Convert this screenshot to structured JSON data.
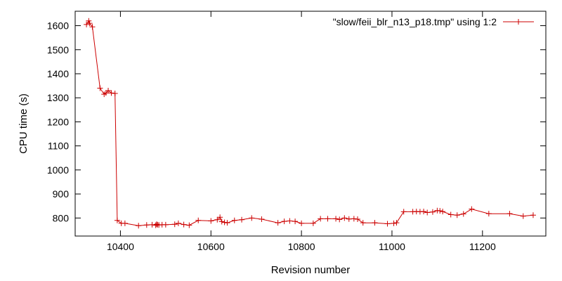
{
  "chart_data": {
    "type": "line",
    "title": "",
    "xlabel": "Revision number",
    "ylabel": "CPU time (s)",
    "xlim": [
      10300,
      11340
    ],
    "ylim": [
      725,
      1660
    ],
    "x_ticks": [
      10400,
      10600,
      10800,
      11000,
      11200
    ],
    "y_ticks": [
      800,
      900,
      1000,
      1100,
      1200,
      1300,
      1400,
      1500,
      1600
    ],
    "grid": false,
    "legend_position": "top-right",
    "colors": {
      "series": "#cc0000",
      "axes": "#000000"
    },
    "series": [
      {
        "name": "\"slow/feii_blr_n13_p18.tmp\" using 1:2",
        "marker": "plus",
        "x": [
          10325,
          10330,
          10332,
          10338,
          10355,
          10364,
          10368,
          10373,
          10380,
          10388,
          10393,
          10402,
          10410,
          10440,
          10458,
          10470,
          10478,
          10480,
          10482,
          10485,
          10492,
          10500,
          10520,
          10528,
          10540,
          10552,
          10572,
          10600,
          10614,
          10620,
          10624,
          10630,
          10636,
          10652,
          10668,
          10690,
          10712,
          10748,
          10762,
          10774,
          10786,
          10800,
          10826,
          10842,
          10858,
          10876,
          10884,
          10895,
          10905,
          10916,
          10924,
          10936,
          10962,
          10990,
          11004,
          11010,
          11026,
          11046,
          11054,
          11062,
          11070,
          11078,
          11090,
          11100,
          11106,
          11112,
          11130,
          11144,
          11158,
          11176,
          11214,
          11260,
          11290,
          11312
        ],
        "y": [
          1605,
          1620,
          1610,
          1595,
          1340,
          1315,
          1320,
          1330,
          1320,
          1318,
          790,
          778,
          778,
          768,
          771,
          772,
          770,
          774,
          772,
          771,
          772,
          772,
          774,
          778,
          773,
          770,
          790,
          788,
          793,
          803,
          785,
          782,
          780,
          790,
          793,
          800,
          795,
          780,
          786,
          788,
          786,
          778,
          778,
          797,
          797,
          797,
          794,
          800,
          796,
          797,
          795,
          780,
          780,
          776,
          778,
          780,
          826,
          826,
          827,
          826,
          827,
          823,
          825,
          831,
          830,
          827,
          814,
          812,
          817,
          837,
          818,
          818,
          808,
          812
        ]
      }
    ]
  }
}
